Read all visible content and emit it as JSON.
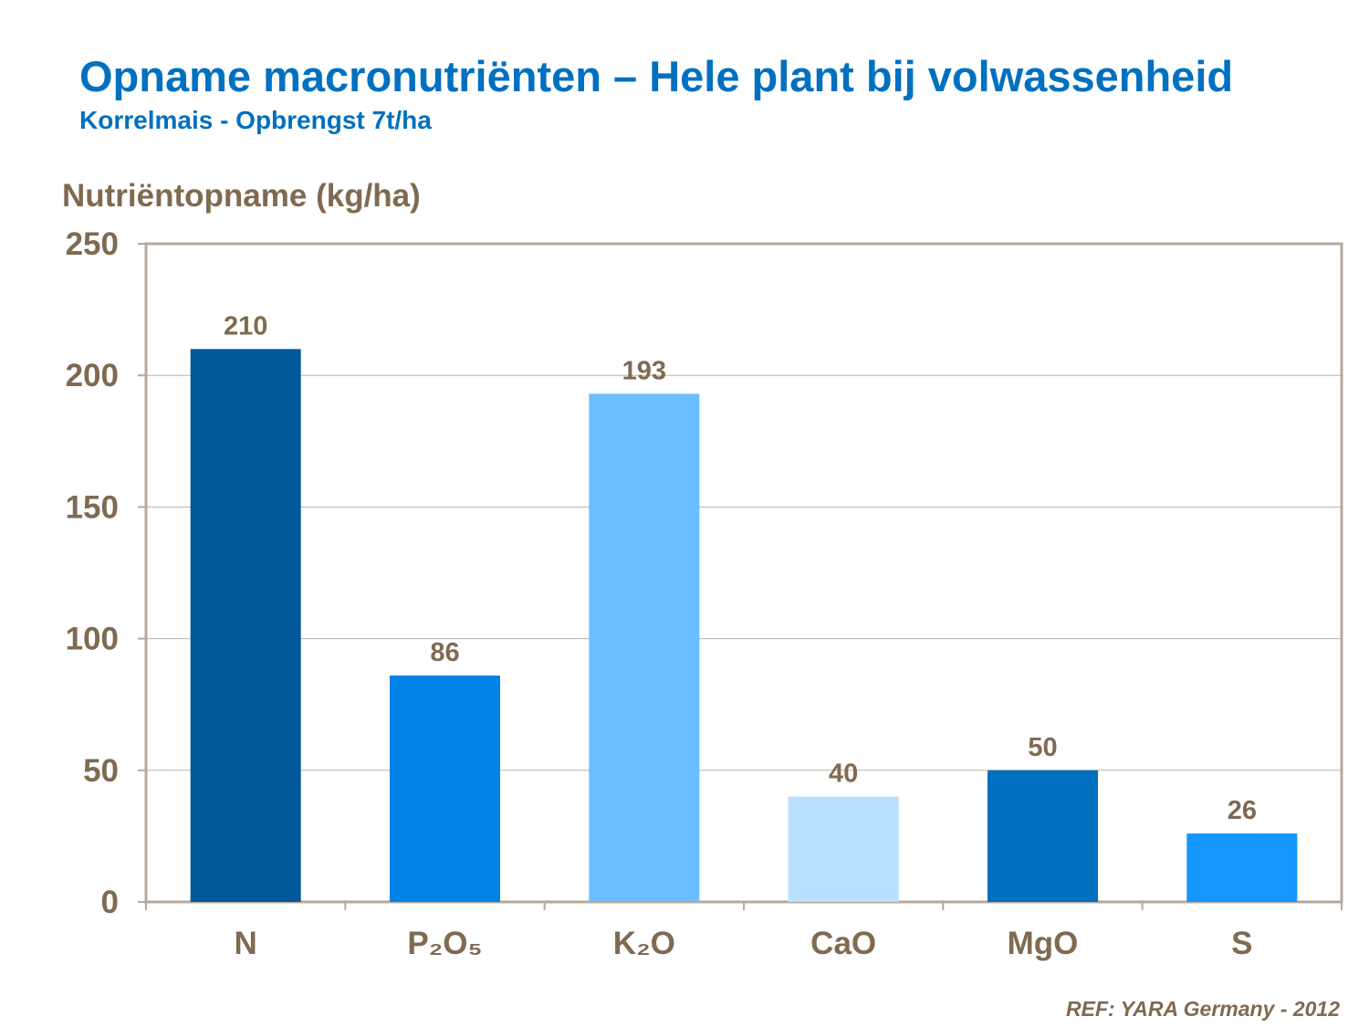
{
  "chart_data": {
    "type": "bar",
    "title": "Opname macronutriënten – Hele plant bij volwassenheid",
    "subtitle": "Korrelmais  - Opbrengst  7t/ha",
    "ylabel": "Nutriëntopname (kg/ha)",
    "xlabel": "",
    "categories": [
      "N",
      "P₂O₅",
      "K₂O",
      "CaO",
      "MgO",
      "S"
    ],
    "values": [
      210,
      86,
      193,
      40,
      50,
      26
    ],
    "colors": [
      "#00589A",
      "#0083E6",
      "#6BBEFF",
      "#B8DFFF",
      "#0070C0",
      "#1596FF"
    ],
    "ylim": [
      0,
      250
    ],
    "yticks": [
      0,
      50,
      100,
      150,
      200,
      250
    ],
    "grid": true,
    "data_labels": true,
    "text_color": "#7F6A52",
    "title_color": "#0070C0"
  },
  "reference": "REF: YARA Germany - 2012"
}
